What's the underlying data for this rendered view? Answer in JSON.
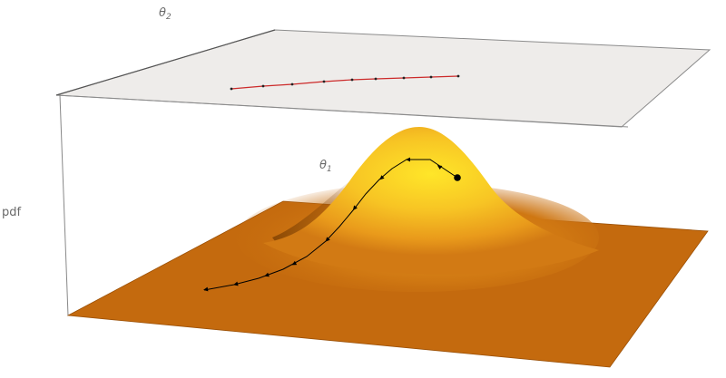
{
  "labels": {
    "theta2_base": "θ",
    "theta2_sub": "2",
    "theta1_base": "θ",
    "theta1_sub": "1",
    "pdf": "pdf"
  },
  "colors": {
    "plane_fill": "#eeecea",
    "plane_edge": "#8c8c8c",
    "floor_fill": "#c46a0e",
    "floor_edge": "#9a4f05",
    "peak_highlight": "#ffe629",
    "peak_mid": "#f6b622",
    "peak_edge": "#d67d14",
    "projection_line": "#cc2a2a",
    "projection_marker": "#222222",
    "trajectory": "#000000",
    "axis_line": "#888888"
  }
}
